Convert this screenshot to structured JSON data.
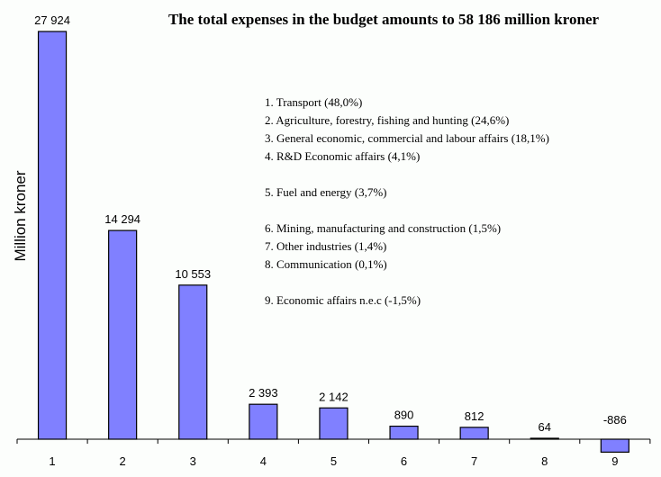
{
  "chart_data": {
    "type": "bar",
    "title": "The total expenses in the budget amounts to 58 186 million kroner",
    "xlabel": "",
    "ylabel": "Million kroner",
    "categories": [
      "1",
      "2",
      "3",
      "4",
      "5",
      "6",
      "7",
      "8",
      "9"
    ],
    "values": [
      27924,
      14294,
      10553,
      2393,
      2142,
      890,
      812,
      64,
      -886
    ],
    "data_labels": [
      "27 924",
      "14 294",
      "10 553",
      "2 393",
      "2 142",
      "890",
      "812",
      "64",
      "-886"
    ],
    "ylim": [
      -886,
      27924
    ],
    "grid": false,
    "bar_color": "#8080ff",
    "legend": [
      "1. Transport (48,0%)",
      "2. Agriculture, forestry, fishing and hunting (24,6%)",
      "3. General economic, commercial and labour affairs (18,1%)",
      "4. R&D Economic affairs (4,1%)",
      "5. Fuel and energy (3,7%)",
      "6. Mining, manufacturing and construction (1,5%)",
      "7. Other industries (1,4%)",
      "8. Communication (0,1%)",
      "9. Economic affairs n.e.c (-1,5%)"
    ]
  }
}
